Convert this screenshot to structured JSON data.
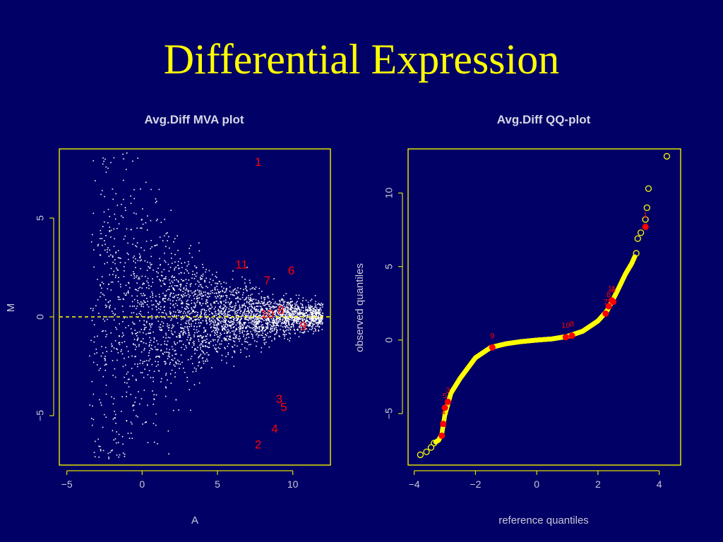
{
  "slide": {
    "title": "Differential Expression"
  },
  "colors": {
    "background": "#000066",
    "title": "#ffff00",
    "axis_text": "#c8c8d8",
    "frame": "#e0e000",
    "points_mva": "#ffffff",
    "points_qq": "#ffff00",
    "highlight": "#ff0000",
    "reference_line": "#ffff00"
  },
  "chart_data": [
    {
      "type": "scatter",
      "title": "Avg.Diff MVA plot",
      "xlabel": "A",
      "ylabel": "M",
      "xlim": [
        -5.5,
        12.5
      ],
      "ylim": [
        -7.5,
        8.5
      ],
      "xticks": [
        -5,
        0,
        5,
        10
      ],
      "yticks": [
        -5,
        0,
        5
      ],
      "grid": false,
      "reference_line": {
        "y": 0,
        "style": "dashed"
      },
      "cloud": {
        "description_values": "dense cloud of genes; spread of M narrows as A increases",
        "a_range": [
          -3.5,
          12
        ],
        "m_range": [
          -7.2,
          8.3
        ],
        "center_m": 0
      },
      "labeled_points": [
        {
          "label": "1",
          "x": 7.7,
          "y": 7.8
        },
        {
          "label": "11",
          "x": 6.6,
          "y": 2.6
        },
        {
          "label": "6",
          "x": 9.9,
          "y": 2.3
        },
        {
          "label": "7",
          "x": 8.3,
          "y": 1.8
        },
        {
          "label": "10",
          "x": 8.3,
          "y": 0.1
        },
        {
          "label": "8",
          "x": 9.2,
          "y": 0.3
        },
        {
          "label": "9",
          "x": 10.7,
          "y": -0.5
        },
        {
          "label": "3",
          "x": 9.1,
          "y": -4.2
        },
        {
          "label": "5",
          "x": 9.4,
          "y": -4.6
        },
        {
          "label": "4",
          "x": 8.8,
          "y": -5.7
        },
        {
          "label": "2",
          "x": 7.7,
          "y": -6.5
        }
      ]
    },
    {
      "type": "scatter",
      "title": "Avg.Diff QQ-plot",
      "xlabel": "reference quantiles",
      "ylabel": "observed quantiles",
      "xlim": [
        -4.2,
        4.7
      ],
      "ylim": [
        -8.5,
        13.0
      ],
      "xticks": [
        -4,
        -2,
        0,
        2,
        4
      ],
      "yticks": [
        -5,
        0,
        5,
        10
      ],
      "grid": false,
      "curve_points": [
        {
          "x": -3.8,
          "y": -7.8
        },
        {
          "x": -3.6,
          "y": -7.6
        },
        {
          "x": -3.45,
          "y": -7.3
        },
        {
          "x": -3.35,
          "y": -7.0
        },
        {
          "x": -3.2,
          "y": -6.8
        },
        {
          "x": -3.1,
          "y": -6.4
        },
        {
          "x": -3.0,
          "y": -5.1
        },
        {
          "x": -2.8,
          "y": -3.6
        },
        {
          "x": -2.5,
          "y": -2.6
        },
        {
          "x": -2.0,
          "y": -1.2
        },
        {
          "x": -1.5,
          "y": -0.5
        },
        {
          "x": -1.0,
          "y": -0.25
        },
        {
          "x": -0.5,
          "y": -0.1
        },
        {
          "x": 0.0,
          "y": 0.0
        },
        {
          "x": 0.5,
          "y": 0.08
        },
        {
          "x": 1.0,
          "y": 0.25
        },
        {
          "x": 1.5,
          "y": 0.6
        },
        {
          "x": 2.0,
          "y": 1.3
        },
        {
          "x": 2.3,
          "y": 2.0
        },
        {
          "x": 2.6,
          "y": 3.2
        },
        {
          "x": 2.9,
          "y": 4.5
        },
        {
          "x": 3.1,
          "y": 5.2
        },
        {
          "x": 3.25,
          "y": 5.9
        },
        {
          "x": 3.3,
          "y": 6.9
        },
        {
          "x": 3.4,
          "y": 7.3
        },
        {
          "x": 3.55,
          "y": 8.2
        },
        {
          "x": 3.6,
          "y": 9.0
        },
        {
          "x": 3.65,
          "y": 10.3
        },
        {
          "x": 4.25,
          "y": 12.5
        }
      ],
      "outlier_points": [
        {
          "x": -3.8,
          "y": -7.8
        },
        {
          "x": -3.6,
          "y": -7.6
        },
        {
          "x": -3.45,
          "y": -7.3
        },
        {
          "x": -3.35,
          "y": -7.0
        },
        {
          "x": 3.25,
          "y": 5.9
        },
        {
          "x": 3.3,
          "y": 6.9
        },
        {
          "x": 3.4,
          "y": 7.3
        },
        {
          "x": 3.55,
          "y": 8.2
        },
        {
          "x": 3.6,
          "y": 9.0
        },
        {
          "x": 3.65,
          "y": 10.3
        },
        {
          "x": 4.25,
          "y": 12.5
        }
      ],
      "labeled_points": [
        {
          "label": "1",
          "x": 3.55,
          "y": 7.7
        },
        {
          "label": "11",
          "x": 2.45,
          "y": 2.7
        },
        {
          "label": "8",
          "x": 2.35,
          "y": 2.3
        },
        {
          "label": "7",
          "x": 2.25,
          "y": 1.8
        },
        {
          "label": "6",
          "x": 2.5,
          "y": 2.6
        },
        {
          "label": "10",
          "x": 0.95,
          "y": 0.2
        },
        {
          "label": "8",
          "x": 1.15,
          "y": 0.3
        },
        {
          "label": "9",
          "x": -1.45,
          "y": -0.5
        },
        {
          "label": "3",
          "x": -2.9,
          "y": -4.2
        },
        {
          "label": "5",
          "x": -3.0,
          "y": -4.6
        },
        {
          "label": "4",
          "x": -3.05,
          "y": -5.7
        },
        {
          "label": "2",
          "x": -3.1,
          "y": -6.5
        }
      ]
    }
  ]
}
